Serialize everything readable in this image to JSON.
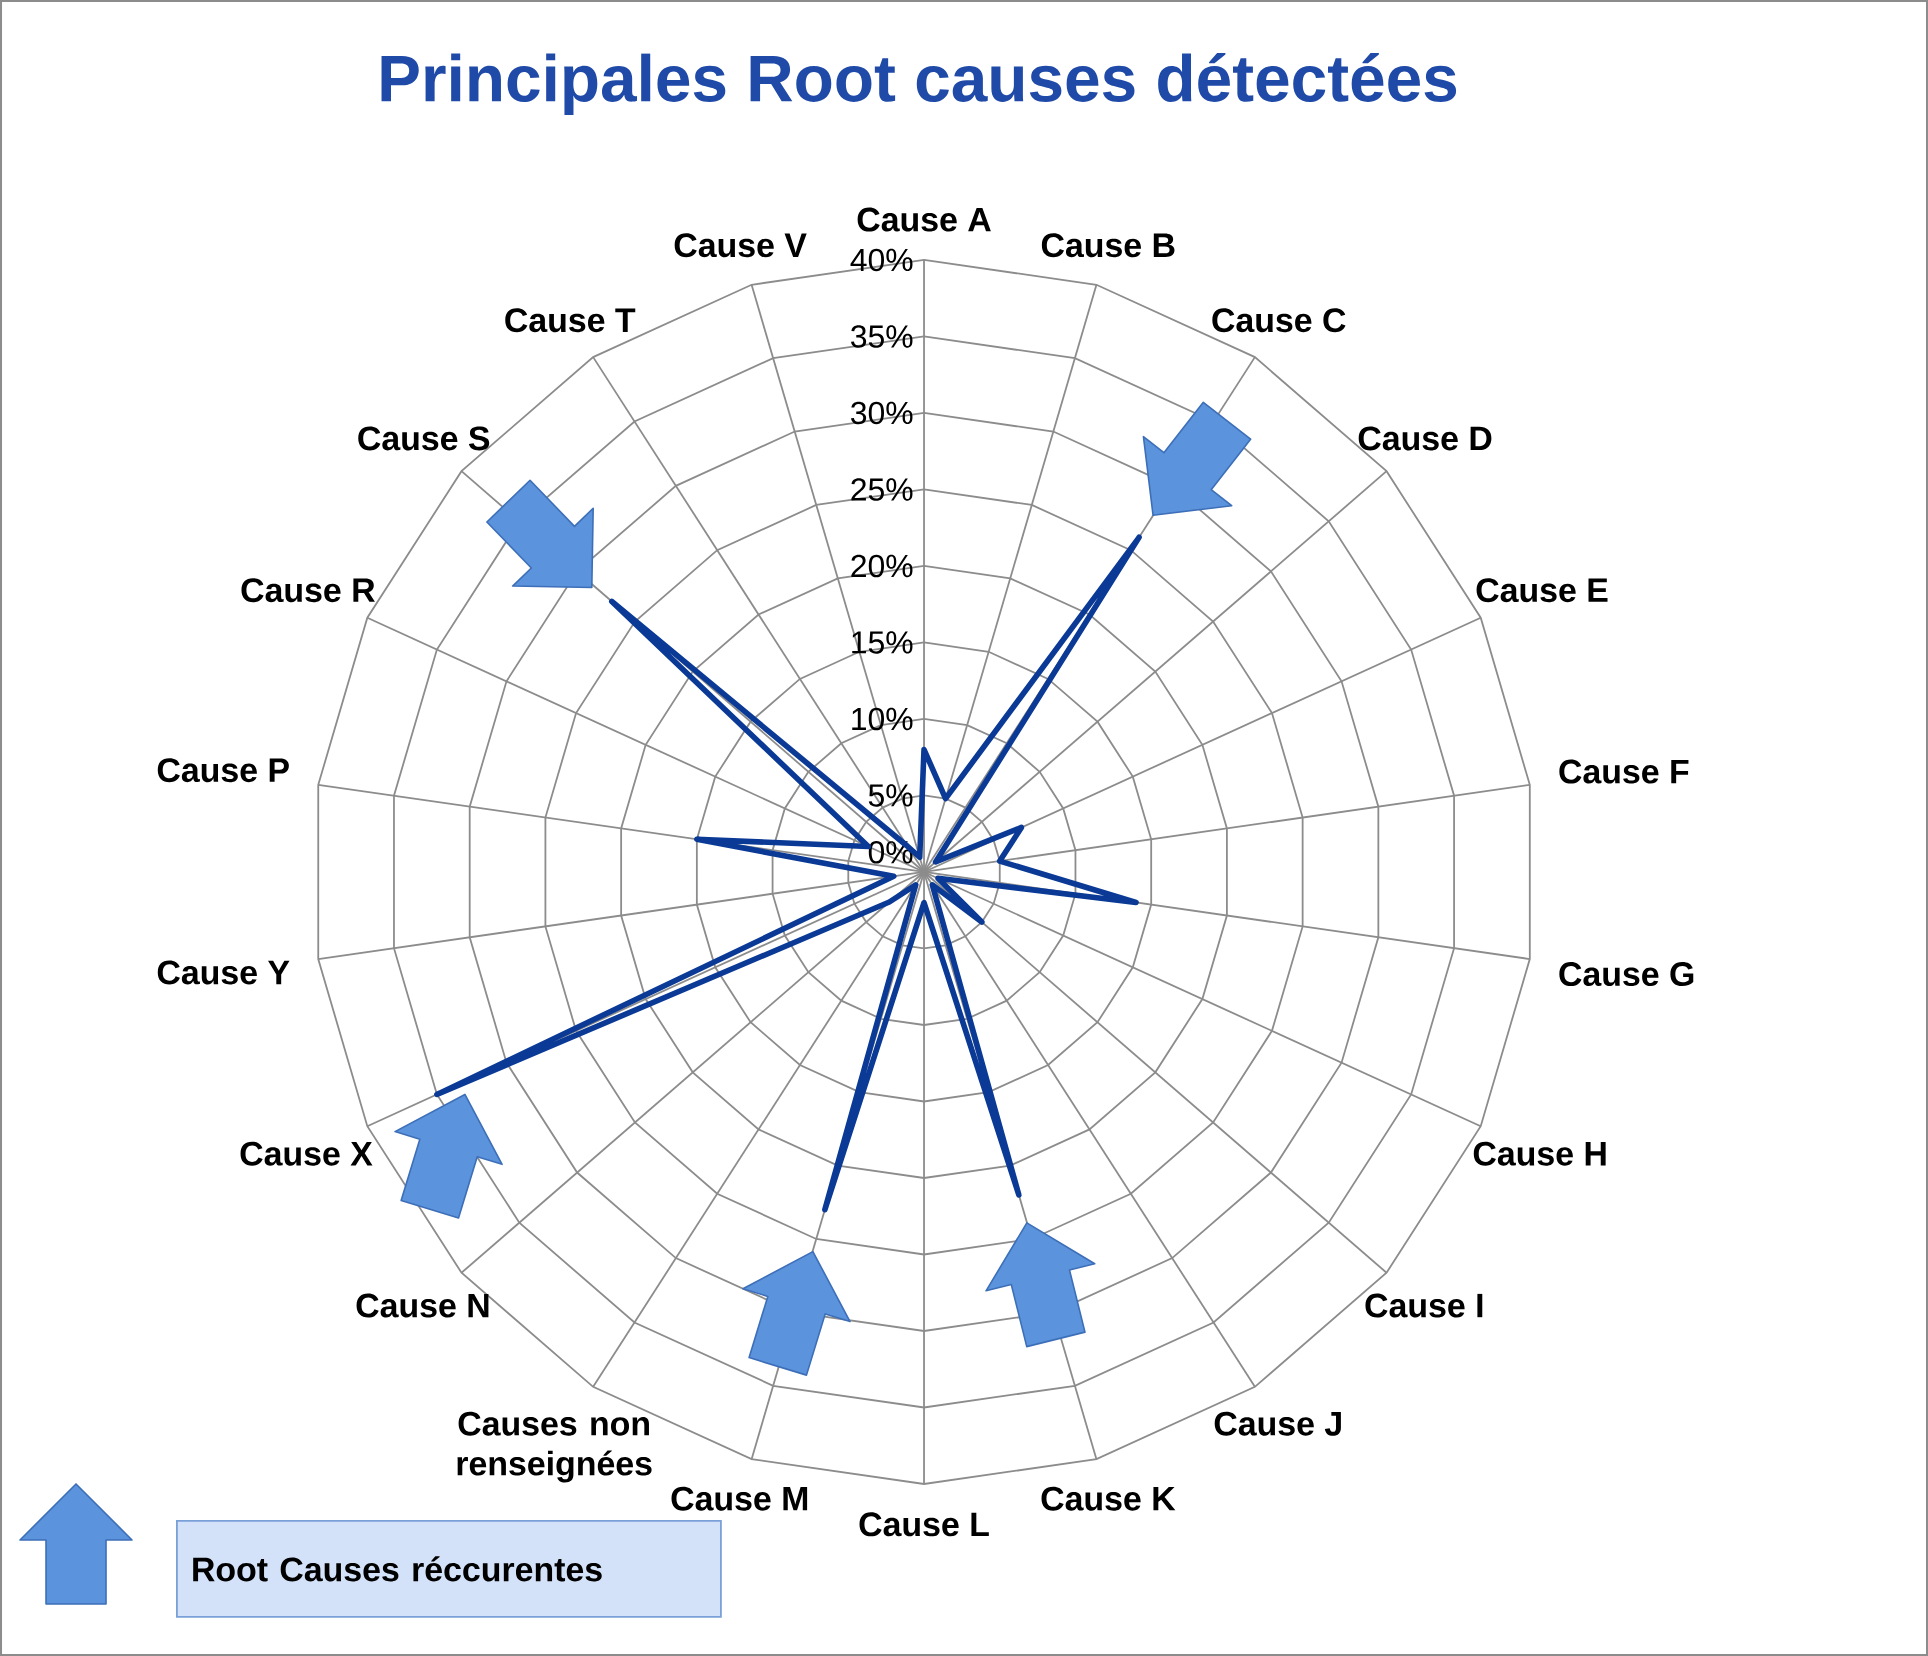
{
  "chart_data": {
    "type": "radar",
    "title": "Principales Root causes détectées",
    "categories": [
      "Cause A",
      "Cause B",
      "Cause C",
      "Cause D",
      "Cause E",
      "Cause F",
      "Cause G",
      "Cause H",
      "Cause I",
      "Cause J",
      "Cause K",
      "Cause L",
      "Cause M",
      "Causes non renseignées",
      "Cause N",
      "Cause X",
      "Cause Y",
      "Cause P",
      "Cause R",
      "Cause S",
      "Cause T",
      "Cause V"
    ],
    "series": [
      {
        "color": "#0a3a96",
        "values": [
          8,
          5,
          26,
          1,
          7,
          5,
          14,
          1,
          5,
          1,
          22,
          2,
          23,
          1,
          3,
          35,
          2,
          15,
          4,
          27,
          2,
          1
        ]
      }
    ],
    "ylim": [
      0,
      40
    ],
    "yticks": [
      {
        "value": 0,
        "label": "0%"
      },
      {
        "value": 5,
        "label": "5%"
      },
      {
        "value": 10,
        "label": "10%"
      },
      {
        "value": 15,
        "label": "15%"
      },
      {
        "value": 20,
        "label": "20%"
      },
      {
        "value": 25,
        "label": "25%"
      },
      {
        "value": 30,
        "label": "30%"
      },
      {
        "value": 35,
        "label": "35%"
      },
      {
        "value": 40,
        "label": "40%"
      }
    ],
    "grid": true,
    "annotations": [
      "Root Causes réccurentes"
    ]
  }
}
